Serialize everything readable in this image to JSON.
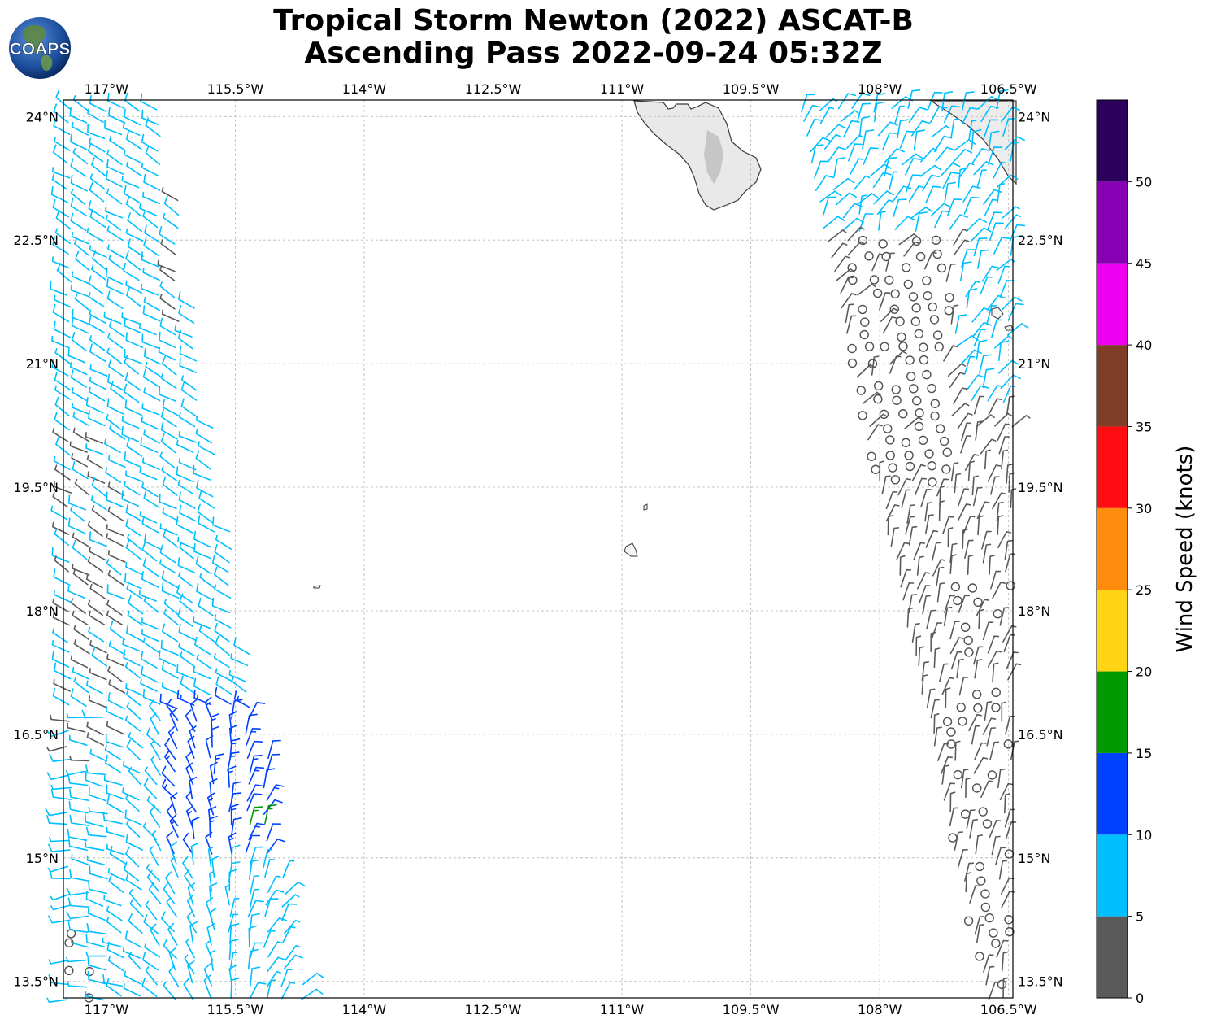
{
  "title": {
    "line1": "Tropical Storm Newton (2022) ASCAT-B",
    "line2": "Ascending Pass 2022-09-24 05:32Z"
  },
  "logo": {
    "text": "COAPS"
  },
  "map": {
    "lon_range": [
      -117.5,
      -106.45
    ],
    "lat_range": [
      13.3,
      24.2
    ],
    "lon_ticks": [
      {
        "value": -117.0,
        "label": "117°W"
      },
      {
        "value": -115.5,
        "label": "115.5°W"
      },
      {
        "value": -114.0,
        "label": "114°W"
      },
      {
        "value": -112.5,
        "label": "112.5°W"
      },
      {
        "value": -111.0,
        "label": "111°W"
      },
      {
        "value": -109.5,
        "label": "109.5°W"
      },
      {
        "value": -108.0,
        "label": "108°W"
      },
      {
        "value": -106.5,
        "label": "106.5°W"
      }
    ],
    "lat_ticks": [
      {
        "value": 24.0,
        "label": "24°N"
      },
      {
        "value": 22.5,
        "label": "22.5°N"
      },
      {
        "value": 21.0,
        "label": "21°N"
      },
      {
        "value": 19.5,
        "label": "19.5°N"
      },
      {
        "value": 18.0,
        "label": "18°N"
      },
      {
        "value": 16.5,
        "label": "16.5°N"
      },
      {
        "value": 15.0,
        "label": "15°N"
      },
      {
        "value": 13.5,
        "label": "13.5°N"
      }
    ],
    "grid": true,
    "land_color": "#e9e9e9"
  },
  "colorbar": {
    "label": "Wind Speed (knots)",
    "ticks": [
      "0",
      "5",
      "10",
      "15",
      "20",
      "25",
      "30",
      "35",
      "40",
      "45",
      "50"
    ],
    "bins": [
      {
        "min": 0,
        "max": 5,
        "color": "#5a5a5a"
      },
      {
        "min": 5,
        "max": 10,
        "color": "#00bfff"
      },
      {
        "min": 10,
        "max": 15,
        "color": "#0040ff"
      },
      {
        "min": 15,
        "max": 20,
        "color": "#009a00"
      },
      {
        "min": 20,
        "max": 25,
        "color": "#ffd414"
      },
      {
        "min": 25,
        "max": 30,
        "color": "#ff8c0c"
      },
      {
        "min": 30,
        "max": 35,
        "color": "#ff0d12"
      },
      {
        "min": 35,
        "max": 40,
        "color": "#7f3e28"
      },
      {
        "min": 40,
        "max": 45,
        "color": "#f000f0"
      },
      {
        "min": 45,
        "max": 50,
        "color": "#8800b4"
      },
      {
        "min": 50,
        "max": 55,
        "color": "#2c005c"
      }
    ]
  }
}
